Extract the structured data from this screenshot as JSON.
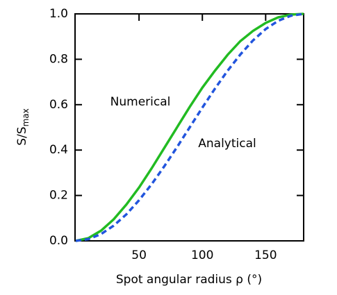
{
  "chart_data": {
    "type": "line",
    "x_label": "Spot angular radius ρ (°)",
    "y_label": {
      "text": "S/S",
      "subscript": "max"
    },
    "x": [
      0,
      10,
      20,
      30,
      40,
      50,
      60,
      70,
      80,
      90,
      100,
      110,
      120,
      130,
      140,
      150,
      160,
      170,
      180
    ],
    "series": [
      {
        "name": "Numerical",
        "color": "#22bb22",
        "dash": false,
        "values": [
          0,
          0.012,
          0.045,
          0.095,
          0.16,
          0.235,
          0.32,
          0.41,
          0.5,
          0.59,
          0.675,
          0.75,
          0.82,
          0.88,
          0.925,
          0.96,
          0.985,
          0.997,
          1.0
        ]
      },
      {
        "name": "Analytical",
        "color": "#2255dd",
        "dash": true,
        "values": [
          0,
          0.0076,
          0.03,
          0.067,
          0.117,
          0.179,
          0.25,
          0.329,
          0.413,
          0.5,
          0.587,
          0.671,
          0.75,
          0.821,
          0.883,
          0.933,
          0.97,
          0.992,
          1.0
        ]
      }
    ],
    "xlim": [
      0,
      180
    ],
    "ylim": [
      0,
      1
    ],
    "xticks": [
      50,
      100,
      150
    ],
    "yticks": [
      {
        "value": 0,
        "label": "0.0"
      },
      0.2,
      0.4,
      0.6,
      0.8,
      {
        "value": 1,
        "label": "1.0"
      }
    ]
  }
}
